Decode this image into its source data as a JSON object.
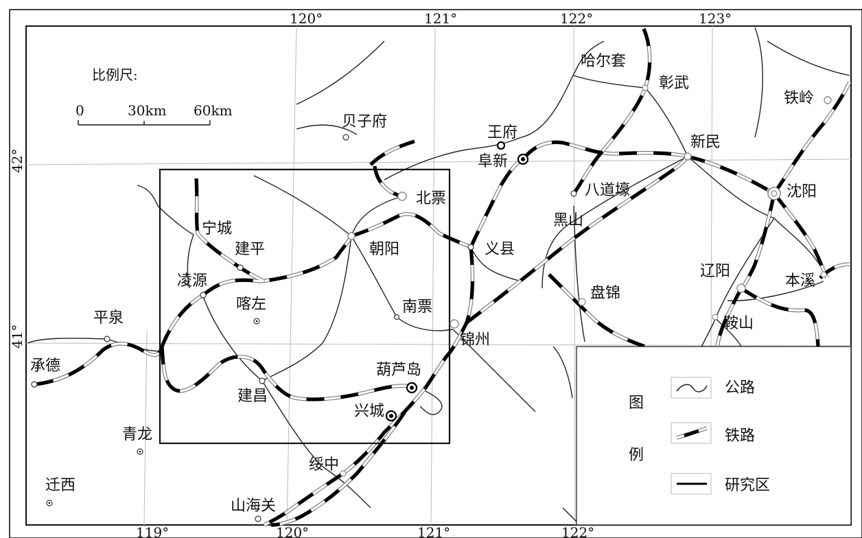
{
  "coords": {
    "top": [
      "120°",
      "121°",
      "122°",
      "123°"
    ],
    "bottom": [
      "119°",
      "120°",
      "121°",
      "122°"
    ],
    "left": [
      "42°",
      "41°"
    ]
  },
  "scale": {
    "title": "比例尺:",
    "ticks": [
      "0",
      "30km",
      "60km"
    ]
  },
  "cities": {
    "haerTao": "哈尔套",
    "zhangwu": "彰武",
    "tieling": "铁岭",
    "beizifu": "贝子府",
    "wangfu": "王府",
    "fuxin": "阜新",
    "xinmin": "新民",
    "badaohao": "八道壕",
    "shenyang": "沈阳",
    "beipiao": "北票",
    "heishan": "黑山",
    "ningcheng": "宁城",
    "jianping": "建平",
    "chaoyang": "朝阳",
    "yixian": "义县",
    "lingyuan": "凌源",
    "kazuo": "喀左",
    "liaoyang": "辽阳",
    "benxi": "本溪",
    "panjin": "盘锦",
    "nanpiao": "南票",
    "pingquan": "平泉",
    "anshan": "鞍山",
    "jinzhou": "锦州",
    "chengde": "承德",
    "huludao": "葫芦岛",
    "jianchang": "建昌",
    "xingcheng": "兴城",
    "qinglong": "青龙",
    "suizhong": "绥中",
    "qianxi": "迁西",
    "shanhaiguan": "山海关"
  },
  "legend": {
    "title_1": "图",
    "title_2": "例",
    "road": "公路",
    "rail": "铁路",
    "study": "研究区"
  },
  "colors": {
    "background": "#ffffff",
    "road": "#222222",
    "rail_dash": "#000000",
    "rail_outline": "#777777",
    "frame": "#111111"
  }
}
